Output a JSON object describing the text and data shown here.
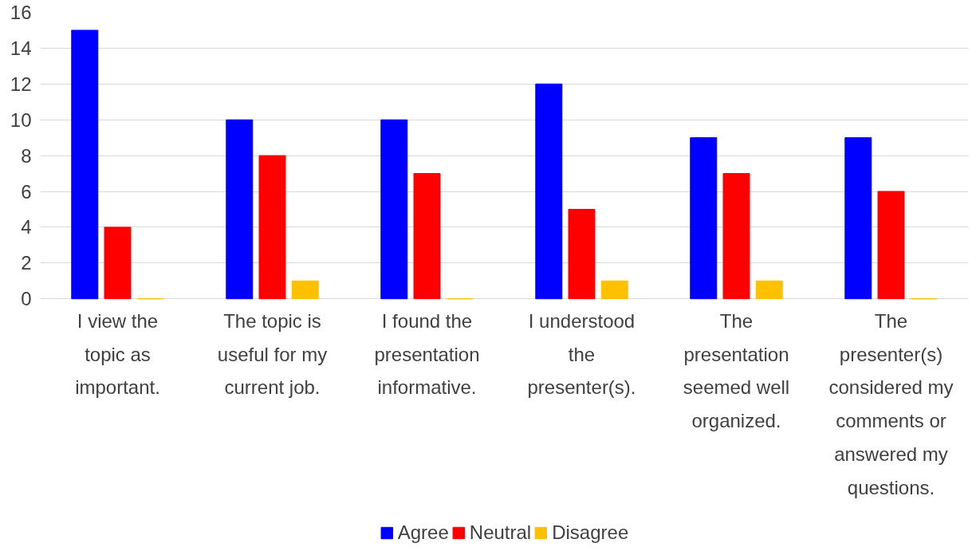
{
  "chart_data": {
    "type": "bar",
    "categories": [
      "I view the topic as important.",
      "The topic is useful for my current job.",
      "I found the presentation informative.",
      "I understood the presenter(s).",
      "The presentation seemed well organized.",
      "The presenter(s) considered my comments or answered my questions."
    ],
    "series": [
      {
        "name": "Agree",
        "color": "#0000ff",
        "values": [
          15,
          10,
          10,
          12,
          9,
          9
        ]
      },
      {
        "name": "Neutral",
        "color": "#ff0000",
        "values": [
          4,
          8,
          7,
          5,
          7,
          6
        ]
      },
      {
        "name": "Disagree",
        "color": "#ffc000",
        "values": [
          0,
          1,
          0,
          1,
          1,
          0
        ]
      }
    ],
    "ylim": [
      0,
      16
    ],
    "yticks": [
      0,
      2,
      4,
      6,
      8,
      10,
      12,
      14,
      16
    ],
    "grid": "y",
    "legend": "bottom"
  }
}
